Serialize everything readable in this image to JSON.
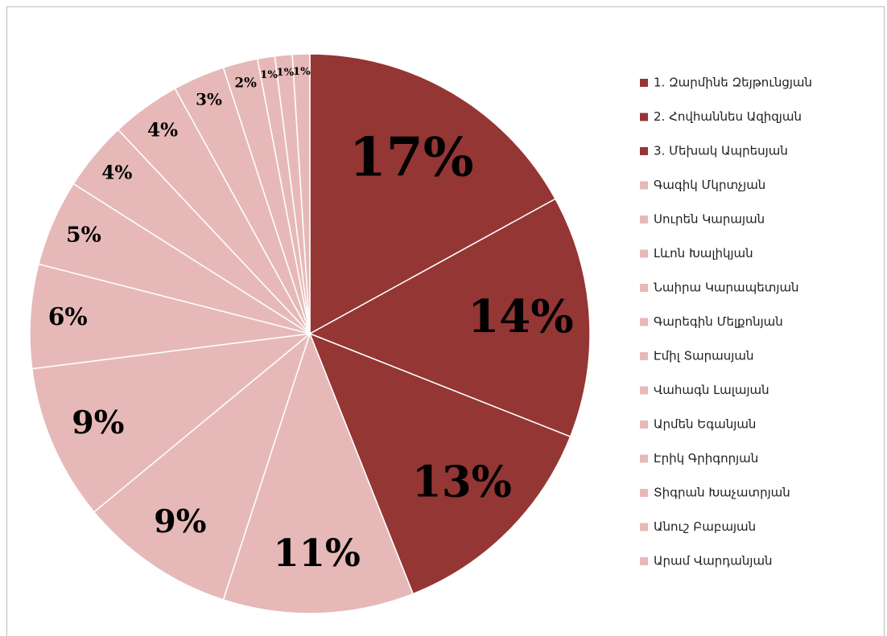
{
  "chart_data": {
    "type": "pie",
    "categories": [
      "1. Զարմինե Զեյթունցյան",
      "2. Հովհաննես Ազիզյան",
      "3. Մեխակ Ապրեսյան",
      "Գագիկ Մկրտչյան",
      "Սուրեն Կարայան",
      "Լևոն Խալիկյան",
      "Նաիրա Կարապետյան",
      "Գարեգին Մելքոնյան",
      "Էմիլ Տարասյան",
      "Վահագն Լալայան",
      "Արմեն Եգանյան",
      "Էրիկ Գրիգորյան",
      "Տիգրան Խաչատրյան",
      "Անուշ Բաբայան",
      "Արամ Վարդանյան"
    ],
    "values": [
      17,
      14,
      13,
      11,
      9,
      9,
      6,
      5,
      4,
      4,
      3,
      2,
      1,
      1,
      1
    ],
    "value_labels": [
      "17%",
      "14%",
      "13%",
      "11%",
      "9%",
      "9%",
      "6%",
      "5%",
      "4%",
      "4%",
      "3%",
      "2%",
      "1%",
      "1%",
      "1%"
    ],
    "colors": [
      "#943634",
      "#943634",
      "#943634",
      "#e6b9b8",
      "#e6b9b8",
      "#e6b9b8",
      "#e6b9b8",
      "#e6b9b8",
      "#e6b9b8",
      "#e6b9b8",
      "#e6b9b8",
      "#e6b9b8",
      "#e6b9b8",
      "#e6b9b8",
      "#e6b9b8"
    ],
    "legend": "right"
  }
}
